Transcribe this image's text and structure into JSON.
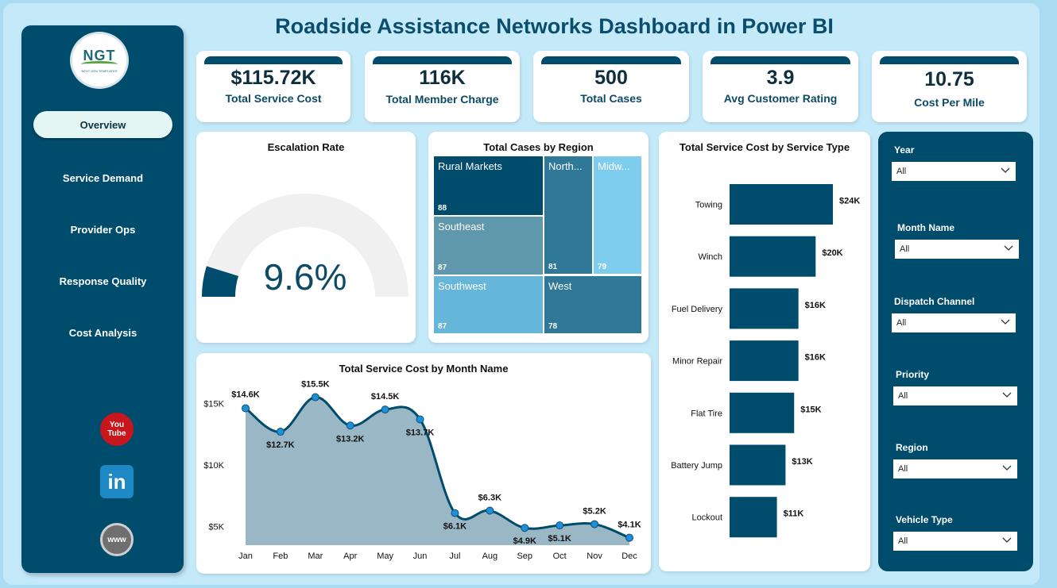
{
  "title": "Roadside Assistance Networks Dashboard in Power BI",
  "logo": {
    "text": "NGT",
    "sub": "NEXT GEN TEMPLATES"
  },
  "nav": [
    {
      "label": "Overview",
      "active": true
    },
    {
      "label": "Service Demand"
    },
    {
      "label": "Provider Ops"
    },
    {
      "label": "Response Quality"
    },
    {
      "label": "Cost Analysis"
    }
  ],
  "social": {
    "youtube": "You Tube",
    "linkedin": "in",
    "web": "www"
  },
  "kpis": [
    {
      "value": "$115.72K",
      "label": "Total Service Cost"
    },
    {
      "value": "116K",
      "label": "Total Member Charge"
    },
    {
      "value": "500",
      "label": "Total Cases"
    },
    {
      "value": "3.9",
      "label": "Avg Customer Rating"
    },
    {
      "value": "10.75",
      "label": "Cost Per Mile"
    }
  ],
  "gauge": {
    "title": "Escalation Rate",
    "value_label": "9.6%",
    "value": 0.096,
    "min": 0,
    "max": 1
  },
  "treemap": {
    "title": "Total Cases by Region",
    "items": [
      {
        "name": "Rural Markets",
        "value": 88,
        "color": "#004c6d"
      },
      {
        "name": "North...",
        "value": 81,
        "color": "#2f7898"
      },
      {
        "name": "Midw...",
        "value": 79,
        "color": "#7fcdee"
      },
      {
        "name": "Southeast",
        "value": 87,
        "color": "#5f97ad"
      },
      {
        "name": "Southwest",
        "value": 87,
        "color": "#66b6d9"
      },
      {
        "name": "West",
        "value": 78,
        "color": "#2f7898"
      }
    ]
  },
  "chart_data": [
    {
      "type": "area",
      "title": "Total Service Cost by Month Name",
      "categories": [
        "Jan",
        "Feb",
        "Mar",
        "Apr",
        "May",
        "Jun",
        "Jul",
        "Aug",
        "Sep",
        "Oct",
        "Nov",
        "Dec"
      ],
      "values": [
        14600,
        12700,
        15500,
        13200,
        14500,
        13700,
        6100,
        6300,
        4900,
        5100,
        5200,
        4100
      ],
      "labels": [
        "$14.6K",
        "$12.7K",
        "$15.5K",
        "$13.2K",
        "$14.5K",
        "$13.7K",
        "$6.1K",
        "$6.3K",
        "$4.9K",
        "$5.1K",
        "$5.2K",
        "$4.1K"
      ],
      "y_ticks": [
        {
          "v": 5000,
          "label": "$5K"
        },
        {
          "v": 10000,
          "label": "$10K"
        },
        {
          "v": 15000,
          "label": "$15K"
        }
      ],
      "ylim": [
        3500,
        16500
      ],
      "color": "#004c6d",
      "fill": "#9ab7c6"
    },
    {
      "type": "bar",
      "orientation": "horizontal",
      "title": "Total Service Cost by Service Type",
      "categories": [
        "Towing",
        "Winch",
        "Fuel Delivery",
        "Minor Repair",
        "Flat Tire",
        "Battery Jump",
        "Lockout"
      ],
      "values": [
        24000,
        20000,
        16000,
        16000,
        15000,
        13000,
        11000
      ],
      "labels": [
        "$24K",
        "$20K",
        "$16K",
        "$16K",
        "$15K",
        "$13K",
        "$11K"
      ],
      "color": "#004c6d"
    }
  ],
  "filters": [
    {
      "label": "Year",
      "value": "All"
    },
    {
      "label": "Month Name",
      "value": "All"
    },
    {
      "label": "Dispatch Channel",
      "value": "All"
    },
    {
      "label": "Priority",
      "value": "All"
    },
    {
      "label": "Region",
      "value": "All"
    },
    {
      "label": "Vehicle Type",
      "value": "All"
    }
  ]
}
